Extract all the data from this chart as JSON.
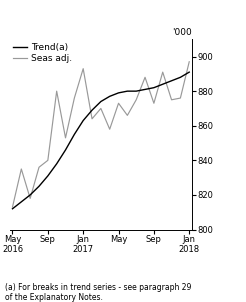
{
  "ylabel": "'000",
  "ylim": [
    800,
    910
  ],
  "yticks": [
    800,
    820,
    840,
    860,
    880,
    900
  ],
  "footnote": "(a) For breaks in trend series - see paragraph 29\nof the Explanatory Notes.",
  "legend_entries": [
    "Trend(a)",
    "Seas adj."
  ],
  "trend_color": "#000000",
  "seas_color": "#999999",
  "background_color": "#ffffff",
  "x_tick_labels": [
    "May\n2016",
    "Sep",
    "Jan\n2017",
    "May",
    "Sep",
    "Jan\n2018"
  ],
  "x_tick_positions": [
    0,
    4,
    8,
    12,
    16,
    20
  ],
  "trend_x": [
    0,
    1,
    2,
    3,
    4,
    5,
    6,
    7,
    8,
    9,
    10,
    11,
    12,
    13,
    14,
    15,
    16,
    17,
    18,
    19,
    20
  ],
  "trend_y": [
    812,
    816,
    820,
    825,
    831,
    838,
    846,
    855,
    863,
    869,
    874,
    877,
    879,
    880,
    880,
    881,
    882,
    884,
    886,
    888,
    891
  ],
  "seas_x": [
    0,
    1,
    2,
    3,
    4,
    5,
    6,
    7,
    8,
    9,
    10,
    11,
    12,
    13,
    14,
    15,
    16,
    17,
    18,
    19,
    20
  ],
  "seas_y": [
    813,
    835,
    818,
    836,
    840,
    880,
    853,
    876,
    893,
    864,
    870,
    858,
    873,
    866,
    875,
    888,
    873,
    891,
    875,
    876,
    897
  ]
}
